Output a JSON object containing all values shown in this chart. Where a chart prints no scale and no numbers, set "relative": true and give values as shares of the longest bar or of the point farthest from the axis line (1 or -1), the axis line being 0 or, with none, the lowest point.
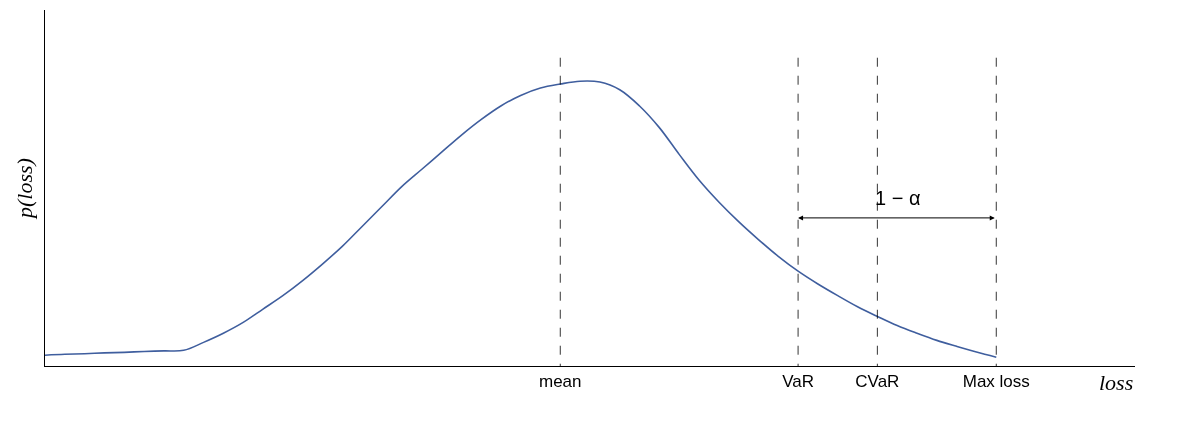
{
  "chart_data": {
    "type": "line",
    "relative": true,
    "xlabel": "loss",
    "ylabel": "p(loss)",
    "color": "#3f5e9e",
    "legend": false,
    "marker": "none",
    "categories": [
      null,
      null,
      null,
      null,
      null,
      null,
      null,
      null,
      null,
      null,
      null,
      null,
      null,
      null,
      null,
      null,
      null,
      null,
      null,
      null,
      null,
      null,
      null,
      null,
      null,
      null,
      "mean",
      null,
      null,
      null,
      null,
      null,
      null,
      null,
      null,
      null,
      null,
      null,
      "VaR",
      null,
      null,
      null,
      "CVaR",
      null,
      null,
      null,
      null,
      null,
      "Max loss",
      null,
      null,
      null,
      null,
      null,
      null,
      null
    ],
    "values": [
      0.038,
      0.041,
      0.043,
      0.046,
      0.048,
      0.051,
      0.053,
      0.055,
      0.083,
      0.115,
      0.153,
      0.2,
      0.247,
      0.3,
      0.358,
      0.42,
      0.49,
      0.56,
      0.63,
      0.69,
      0.75,
      0.81,
      0.865,
      0.913,
      0.95,
      0.976,
      0.99,
      1.0,
      0.997,
      0.97,
      0.913,
      0.837,
      0.743,
      0.653,
      0.576,
      0.507,
      0.444,
      0.385,
      0.333,
      0.288,
      0.247,
      0.208,
      0.174,
      0.142,
      0.115,
      0.09,
      0.069,
      0.049,
      0.031,
      null,
      null,
      null,
      null,
      null,
      null,
      null
    ],
    "ref_lines": [
      {
        "axis": "x",
        "value": "mean",
        "line_style": "dashed",
        "color": "#000000"
      },
      {
        "axis": "x",
        "value": "VaR",
        "line_style": "dashed",
        "color": "#000000"
      },
      {
        "axis": "x",
        "value": "CVaR",
        "line_style": "dashed",
        "color": "#000000"
      },
      {
        "axis": "x",
        "value": "Max loss",
        "line_style": "dashed",
        "color": "#000000"
      }
    ],
    "annotations": [
      "1 − α"
    ]
  }
}
